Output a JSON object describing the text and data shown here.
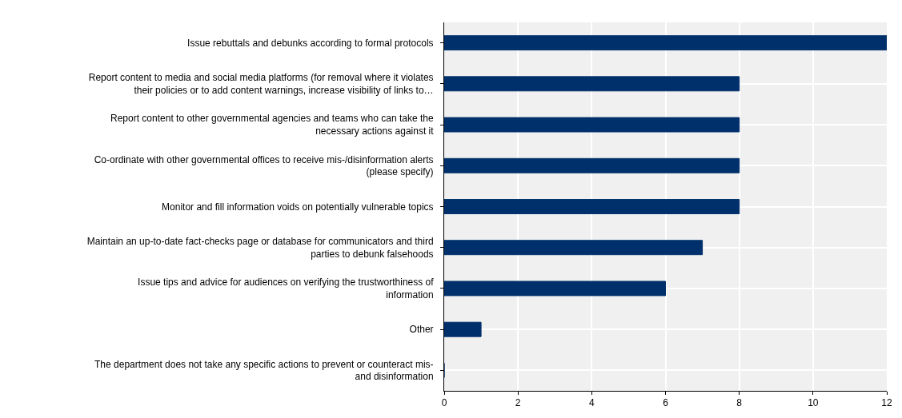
{
  "chart_data": {
    "type": "bar",
    "orientation": "horizontal",
    "categories": [
      "Issue rebuttals and debunks according to formal protocols",
      "Report content to media and social media platforms (for removal where it violates their policies or to add content warnings, increase visibility of links to…",
      "Report content to other governmental agencies and teams who can take the necessary actions against it",
      "Co-ordinate with other governmental offices to receive mis-/disinformation alerts (please specify)",
      "Monitor and fill information voids on potentially vulnerable topics",
      "Maintain an up-to-date fact-checks page or database for communicators and third parties to debunk falsehoods",
      "Issue tips and advice for audiences on verifying the trustworthiness of information",
      "Other",
      "The department does not take any specific actions to prevent or counteract mis- and disinformation"
    ],
    "values": [
      12,
      8,
      8,
      8,
      8,
      7,
      6,
      1,
      0
    ],
    "color": "#00306b",
    "xlim": [
      0,
      12
    ],
    "xticks": [
      0,
      2,
      4,
      6,
      8,
      10,
      12
    ],
    "grid": true
  }
}
